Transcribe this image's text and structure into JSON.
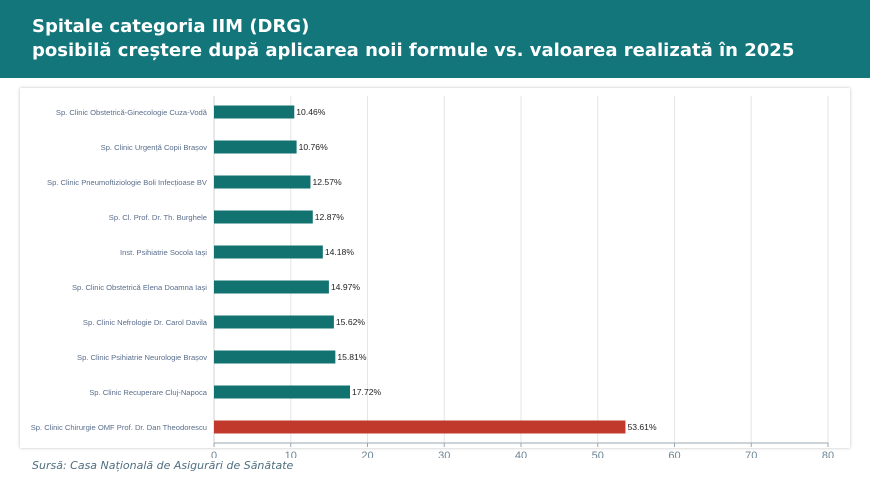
{
  "header": {
    "title_line1": "Spitale categoria IIM (DRG)",
    "title_line2": "posibilă creștere după aplicarea noii formule vs. valoarea realizată în 2025"
  },
  "source": "Sursă: Casa Națională de Asigurări de Sănătate",
  "colors": {
    "header_bg": "#12767a",
    "bar_default": "#12726f",
    "bar_highlight": "#c0392b"
  },
  "chart_data": {
    "type": "bar",
    "orientation": "horizontal",
    "categories": [
      "Sp. Clinic Obstetrică-Ginecologie Cuza-Vodă",
      "Sp. Clinic Urgență Copii Brașov",
      "Sp. Clinic Pneumoftiziologie Boli Infecțioase BV",
      "Sp. Cl. Prof. Dr. Th. Burghele",
      "Inst. Psihiatrie Socola Iași",
      "Sp. Clinic Obstetrică Elena Doamna Iași",
      "Sp. Clinic Nefrologie Dr. Carol Davila",
      "Sp. Clinic Psihiatrie Neurologie Brașov",
      "Sp. Clinic Recuperare Cluj-Napoca",
      "Sp. Clinic Chirurgie OMF Prof. Dr. Dan Theodorescu"
    ],
    "values": [
      10.46,
      10.76,
      12.57,
      12.87,
      14.18,
      14.97,
      15.62,
      15.81,
      17.72,
      53.61
    ],
    "value_labels": [
      "10.46%",
      "10.76%",
      "12.57%",
      "12.87%",
      "14.18%",
      "14.97%",
      "15.62%",
      "15.81%",
      "17.72%",
      "53.61%"
    ],
    "highlight_index": 9,
    "xlim": [
      0,
      80
    ],
    "xticks": [
      0,
      10,
      20,
      30,
      40,
      50,
      60,
      70,
      80
    ],
    "grid": true,
    "legend": "none"
  }
}
